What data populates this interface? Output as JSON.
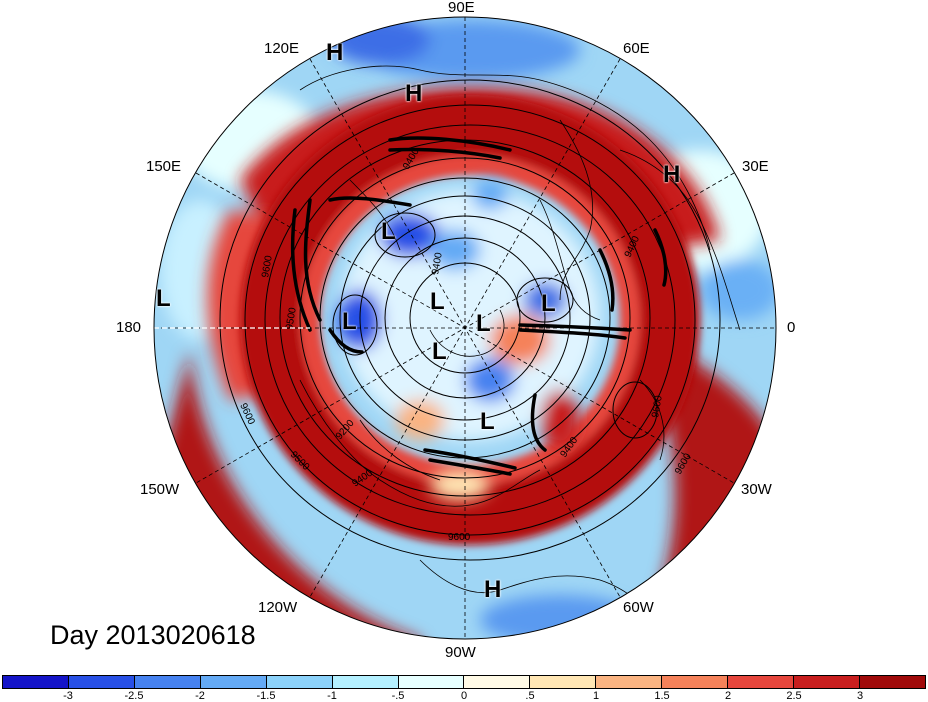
{
  "title": "Day 2013020618",
  "longitude_labels": [
    {
      "id": "90e",
      "text": "90E"
    },
    {
      "id": "60e",
      "text": "60E"
    },
    {
      "id": "30e",
      "text": "30E"
    },
    {
      "id": "0",
      "text": "0"
    },
    {
      "id": "30w",
      "text": "30W"
    },
    {
      "id": "60w",
      "text": "60W"
    },
    {
      "id": "90w",
      "text": "90W"
    },
    {
      "id": "120w",
      "text": "120W"
    },
    {
      "id": "150w",
      "text": "150W"
    },
    {
      "id": "180",
      "text": "180"
    },
    {
      "id": "150e",
      "text": "150E"
    },
    {
      "id": "120e",
      "text": "120E"
    }
  ],
  "pressure_centers": [
    {
      "type": "H",
      "text": "H"
    },
    {
      "type": "H",
      "text": "H"
    },
    {
      "type": "H",
      "text": "H"
    },
    {
      "type": "L",
      "text": "L"
    },
    {
      "type": "L",
      "text": "L"
    },
    {
      "type": "L",
      "text": "L"
    },
    {
      "type": "L",
      "text": "L"
    },
    {
      "type": "L",
      "text": "L"
    },
    {
      "type": "L",
      "text": "L"
    },
    {
      "type": "L",
      "text": "L"
    },
    {
      "type": "H",
      "text": "H"
    }
  ],
  "contour_labels": [
    "9400",
    "9600",
    "9500",
    "9200",
    "9400",
    "9600",
    "9400",
    "9600",
    "9400",
    "9600",
    "9500",
    "9600",
    "9400"
  ],
  "colorbar": {
    "ticks": [
      "-3",
      "-2.5",
      "-2",
      "-1.5",
      "-1",
      "-.5",
      "0",
      ".5",
      "1",
      "1.5",
      "2",
      "2.5",
      "3"
    ],
    "colors": [
      "#1414c8",
      "#2850e6",
      "#4682f0",
      "#64aaf5",
      "#8cd2fa",
      "#b4f0ff",
      "#e6ffff",
      "#fffae6",
      "#ffe6b4",
      "#fab482",
      "#f5825a",
      "#e6463c",
      "#c81e1e",
      "#a00a0a"
    ]
  }
}
